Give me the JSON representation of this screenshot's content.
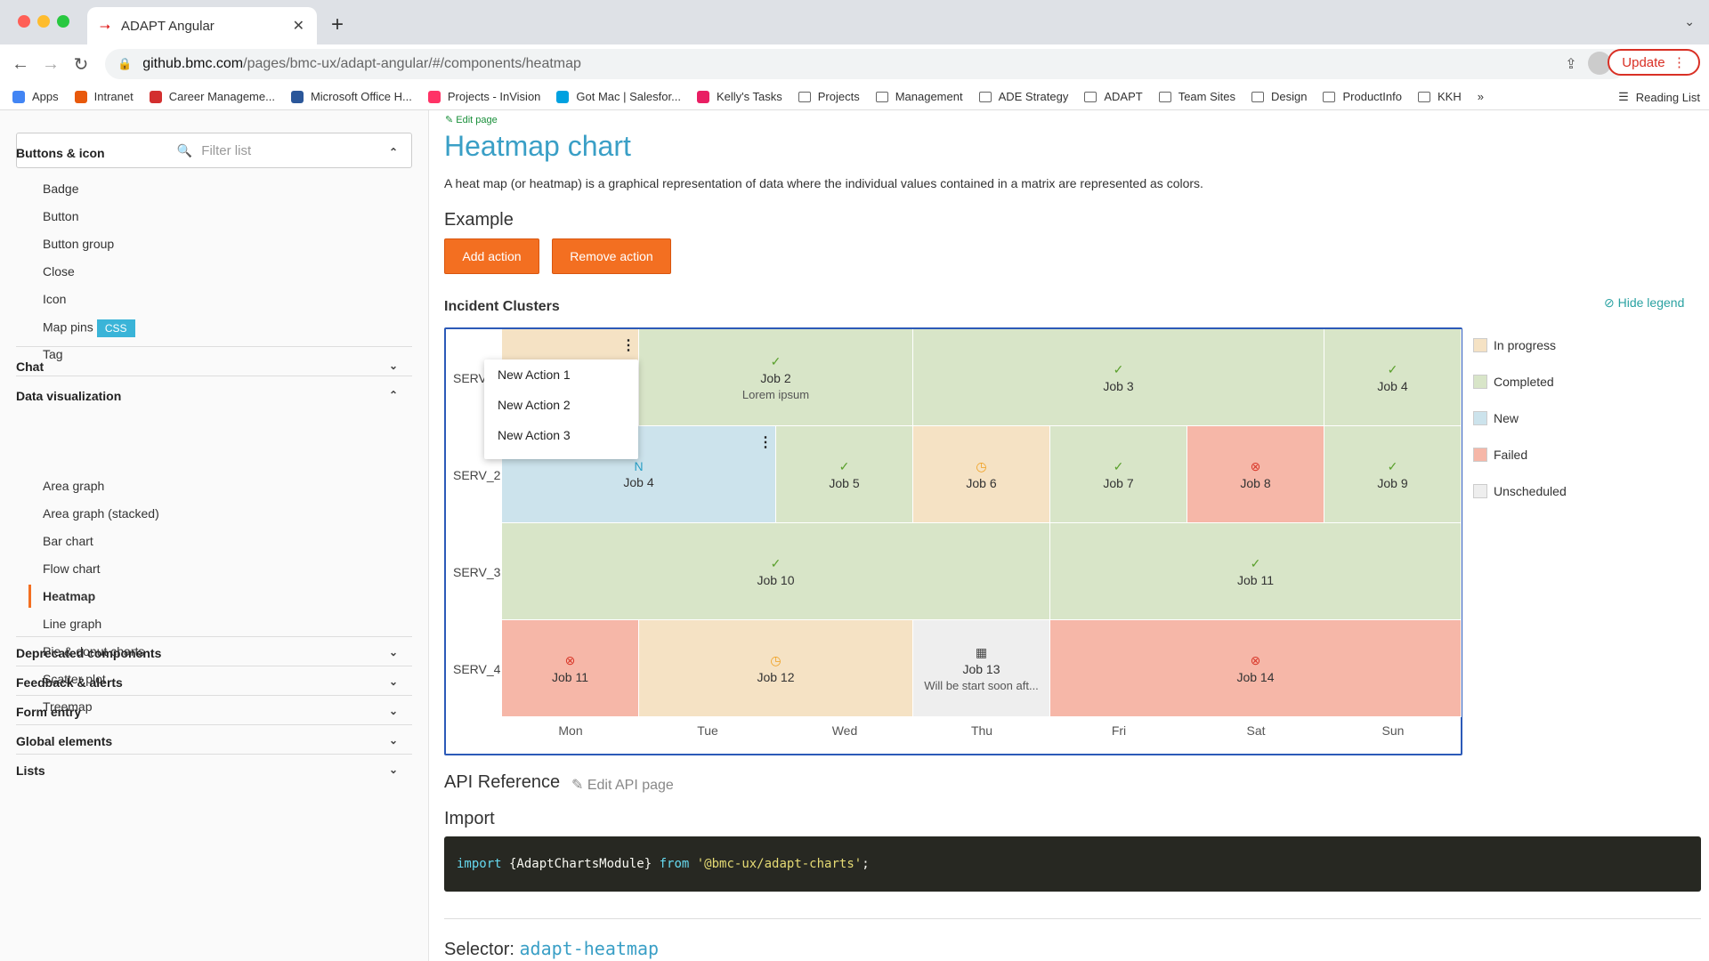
{
  "browser": {
    "tab_title": "ADAPT Angular",
    "url_host": "github.bmc.com",
    "url_path": "/pages/bmc-ux/adapt-angular/#/components/heatmap",
    "update_label": "Update",
    "bookmarks": [
      {
        "label": "Apps",
        "color": "#4285f4"
      },
      {
        "label": "Intranet",
        "color": "#e8590c"
      },
      {
        "label": "Career Manageme...",
        "color": "#d32f2f"
      },
      {
        "label": "Microsoft Office H...",
        "color": "#2b579a"
      },
      {
        "label": "Projects - InVision",
        "color": "#ff3366"
      },
      {
        "label": "Got Mac | Salesfor...",
        "color": "#00a1e0"
      },
      {
        "label": "Kelly's Tasks",
        "color": "#e91e63"
      },
      {
        "label": "Projects",
        "color": ""
      },
      {
        "label": "Management",
        "color": ""
      },
      {
        "label": "ADE Strategy",
        "color": ""
      },
      {
        "label": "ADAPT",
        "color": ""
      },
      {
        "label": "Team Sites",
        "color": ""
      },
      {
        "label": "Design",
        "color": ""
      },
      {
        "label": "ProductInfo",
        "color": ""
      },
      {
        "label": "KKH",
        "color": ""
      }
    ],
    "more_label": "»",
    "reading_list": "Reading List"
  },
  "sidebar": {
    "filter_placeholder": "Filter list",
    "sections": [
      {
        "label": "Buttons & icon",
        "expanded": true
      },
      {
        "label": "Chat",
        "expanded": false
      },
      {
        "label": "Data visualization",
        "expanded": true
      },
      {
        "label": "Deprecated components",
        "expanded": false
      },
      {
        "label": "Feedback & alerts",
        "expanded": false
      },
      {
        "label": "Form entry",
        "expanded": false
      },
      {
        "label": "Global elements",
        "expanded": false
      },
      {
        "label": "Lists",
        "expanded": false
      }
    ],
    "buttons_items": [
      "Badge",
      "Button",
      "Button group",
      "Close",
      "Icon",
      "Map pins",
      "Tag"
    ],
    "css_badge": "CSS",
    "dataviz_items": [
      "Area graph",
      "Area graph (stacked)",
      "Bar chart",
      "Flow chart",
      "Heatmap",
      "Line graph",
      "Pie & donut charts",
      "Scatter plot",
      "Treemap"
    ],
    "active_item": "Heatmap"
  },
  "main": {
    "edit_page": "Edit page",
    "title": "Heatmap chart",
    "description": "A heat map (or heatmap) is a graphical representation of data where the individual values contained in a matrix are represented as colors.",
    "example_heading": "Example",
    "add_action": "Add action",
    "remove_action": "Remove action",
    "chart_title": "Incident Clusters",
    "hide_legend": "Hide legend",
    "api_reference": "API Reference",
    "edit_api": "Edit API page",
    "import_heading": "Import",
    "code": {
      "kw1": "import",
      "mid": " {AdaptChartsModule} ",
      "kw2": "from",
      "str": "'@bmc-ux/adapt-charts'",
      "end": ";"
    },
    "selector_label": "Selector:",
    "selector_value": "adapt-heatmap"
  },
  "context_menu": [
    "New Action 1",
    "New Action 2",
    "New Action 3"
  ],
  "chart_data": {
    "type": "heatmap",
    "title": "Incident Clusters",
    "rows": [
      "SERV_",
      "SERV_2",
      "SERV_3",
      "SERV_4"
    ],
    "columns": [
      "Mon",
      "Tue",
      "Wed",
      "Thu",
      "Fri",
      "Sat",
      "Sun"
    ],
    "legend": [
      {
        "label": "In progress",
        "color": "#f5e2c4"
      },
      {
        "label": "Completed",
        "color": "#d8e5c8"
      },
      {
        "label": "New",
        "color": "#cce3ec"
      },
      {
        "label": "Failed",
        "color": "#f6b7a8"
      },
      {
        "label": "Unscheduled",
        "color": "#eeeeee"
      }
    ],
    "jobs": [
      {
        "row": 0,
        "start": 0,
        "end": 1,
        "label": "",
        "status": "in progress",
        "sub": ""
      },
      {
        "row": 0,
        "start": 1,
        "end": 3,
        "label": "Job 2",
        "status": "completed",
        "sub": "Lorem ipsum"
      },
      {
        "row": 0,
        "start": 3,
        "end": 6,
        "label": "Job 3",
        "status": "completed",
        "sub": ""
      },
      {
        "row": 0,
        "start": 6,
        "end": 7,
        "label": "Job 4",
        "status": "completed",
        "sub": ""
      },
      {
        "row": 1,
        "start": 0,
        "end": 2,
        "label": "Job 4",
        "status": "new",
        "sub": ""
      },
      {
        "row": 1,
        "start": 2,
        "end": 3,
        "label": "Job 5",
        "status": "completed",
        "sub": ""
      },
      {
        "row": 1,
        "start": 3,
        "end": 4,
        "label": "Job 6",
        "status": "in progress",
        "sub": ""
      },
      {
        "row": 1,
        "start": 4,
        "end": 5,
        "label": "Job 7",
        "status": "completed",
        "sub": ""
      },
      {
        "row": 1,
        "start": 5,
        "end": 6,
        "label": "Job 8",
        "status": "failed",
        "sub": ""
      },
      {
        "row": 1,
        "start": 6,
        "end": 7,
        "label": "Job 9",
        "status": "completed",
        "sub": ""
      },
      {
        "row": 2,
        "start": 0,
        "end": 4,
        "label": "Job 10",
        "status": "completed",
        "sub": ""
      },
      {
        "row": 2,
        "start": 4,
        "end": 7,
        "label": "Job 11",
        "status": "completed",
        "sub": ""
      },
      {
        "row": 3,
        "start": 0,
        "end": 1,
        "label": "Job 11",
        "status": "failed",
        "sub": ""
      },
      {
        "row": 3,
        "start": 1,
        "end": 3,
        "label": "Job 12",
        "status": "in progress",
        "sub": ""
      },
      {
        "row": 3,
        "start": 3,
        "end": 4,
        "label": "Job 13",
        "status": "unscheduled",
        "sub": "Will be start soon aft..."
      },
      {
        "row": 3,
        "start": 4,
        "end": 7,
        "label": "Job 14",
        "status": "failed",
        "sub": ""
      }
    ]
  },
  "colors": {
    "accent": "#f36f21",
    "title": "#3a9fc6",
    "chart_border": "#2c5ab8"
  }
}
